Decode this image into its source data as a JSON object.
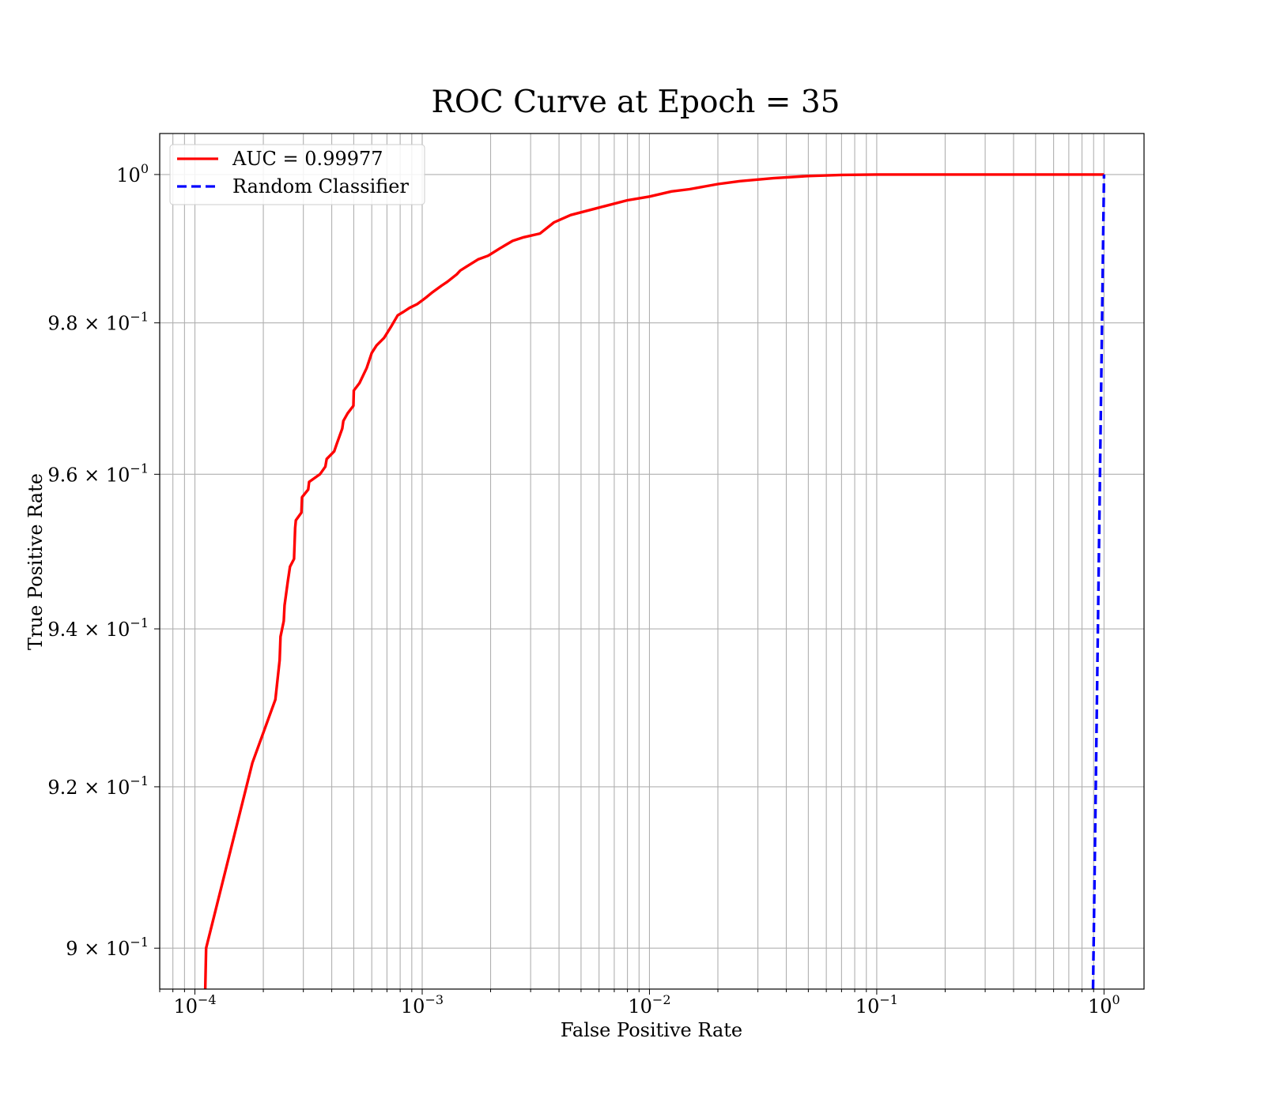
{
  "chart_data": {
    "type": "line",
    "title": "ROC Curve at Epoch = 35",
    "xlabel": "False Positive Rate",
    "ylabel": "True Positive Rate",
    "xscale": "log",
    "yscale": "log",
    "xlim": [
      7e-05,
      1.5
    ],
    "ylim": [
      0.895,
      1.0056
    ],
    "grid": true,
    "grid_minor": true,
    "legend_position": "upper-left",
    "x_ticks": [
      {
        "base": "10",
        "exp": "−4"
      },
      {
        "base": "10",
        "exp": "−3"
      },
      {
        "base": "10",
        "exp": "−2"
      },
      {
        "base": "10",
        "exp": "−1"
      },
      {
        "base": "10",
        "exp": "0"
      }
    ],
    "y_ticks": [
      {
        "mant": "9 × 10",
        "exp": "−1"
      },
      {
        "mant": "9.2 × 10",
        "exp": "−1"
      },
      {
        "mant": "9.4 × 10",
        "exp": "−1"
      },
      {
        "mant": "9.6 × 10",
        "exp": "−1"
      },
      {
        "mant": "9.8 × 10",
        "exp": "−1"
      },
      {
        "mant": "10",
        "exp": "0"
      }
    ],
    "series": [
      {
        "name": "AUC = 0.99977",
        "color": "#ff0000",
        "style": "solid",
        "x": [
          0.000111,
          0.000112,
          0.000179,
          0.000226,
          0.000236,
          0.000238,
          0.000246,
          0.000248,
          0.000256,
          0.000262,
          0.000273,
          0.000276,
          0.000278,
          0.000294,
          0.000296,
          0.000315,
          0.000318,
          0.000355,
          0.000375,
          0.00038,
          0.00041,
          0.000421,
          0.000445,
          0.00045,
          0.00047,
          0.000498,
          0.0005,
          0.00053,
          0.00057,
          0.0006,
          0.00063,
          0.00068,
          0.00073,
          0.00078,
          0.00083,
          0.00088,
          0.00095,
          0.001,
          0.00105,
          0.0011,
          0.00122,
          0.00129,
          0.00142,
          0.00147,
          0.00156,
          0.00176,
          0.00195,
          0.0022,
          0.0025,
          0.0028,
          0.0033,
          0.0038,
          0.0045,
          0.006,
          0.008,
          0.01,
          0.0125,
          0.015,
          0.02,
          0.025,
          0.035,
          0.05,
          0.07,
          0.1,
          0.15,
          0.3,
          0.6,
          1.0
        ],
        "y": [
          0.895,
          0.9,
          0.923,
          0.931,
          0.936,
          0.939,
          0.941,
          0.943,
          0.946,
          0.948,
          0.949,
          0.953,
          0.954,
          0.955,
          0.957,
          0.958,
          0.959,
          0.96,
          0.961,
          0.962,
          0.963,
          0.964,
          0.966,
          0.967,
          0.968,
          0.969,
          0.971,
          0.972,
          0.974,
          0.976,
          0.977,
          0.978,
          0.9795,
          0.981,
          0.9815,
          0.982,
          0.9825,
          0.983,
          0.9835,
          0.984,
          0.985,
          0.9855,
          0.9865,
          0.987,
          0.9875,
          0.9885,
          0.989,
          0.99,
          0.991,
          0.9915,
          0.992,
          0.9935,
          0.9945,
          0.9955,
          0.9965,
          0.997,
          0.9977,
          0.998,
          0.9987,
          0.9991,
          0.9995,
          0.9998,
          0.99995,
          1.0,
          1.0,
          1.0,
          1.0,
          1.0
        ]
      },
      {
        "name": "Random Classifier",
        "color": "#0000ff",
        "style": "dashed",
        "x": [
          0.895,
          1.0
        ],
        "y": [
          0.895,
          1.0
        ]
      }
    ]
  }
}
